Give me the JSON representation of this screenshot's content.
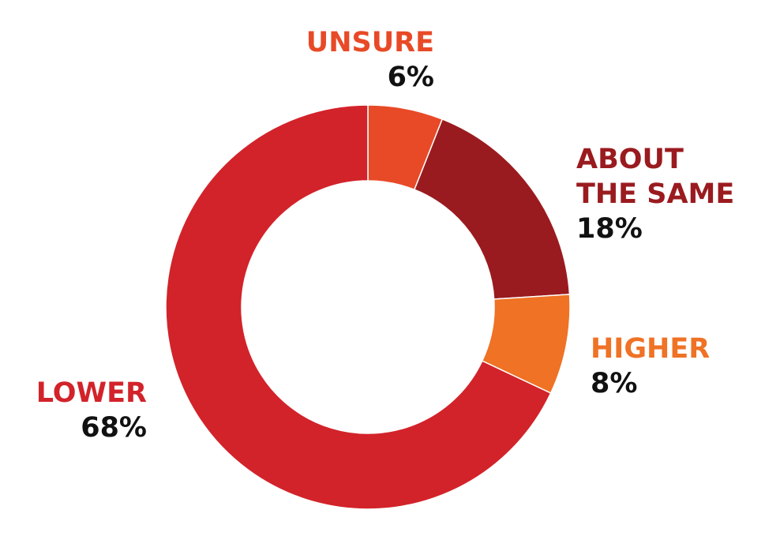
{
  "chart_data": {
    "type": "donut",
    "categories": [
      "UNSURE",
      "ABOUT THE SAME",
      "HIGHER",
      "LOWER"
    ],
    "values": [
      6,
      18,
      8,
      68
    ],
    "value_labels": [
      "6%",
      "18%",
      "8%",
      "68%"
    ],
    "colors": [
      "#e84a27",
      "#9a1b1f",
      "#ef7225",
      "#d2232a"
    ]
  }
}
